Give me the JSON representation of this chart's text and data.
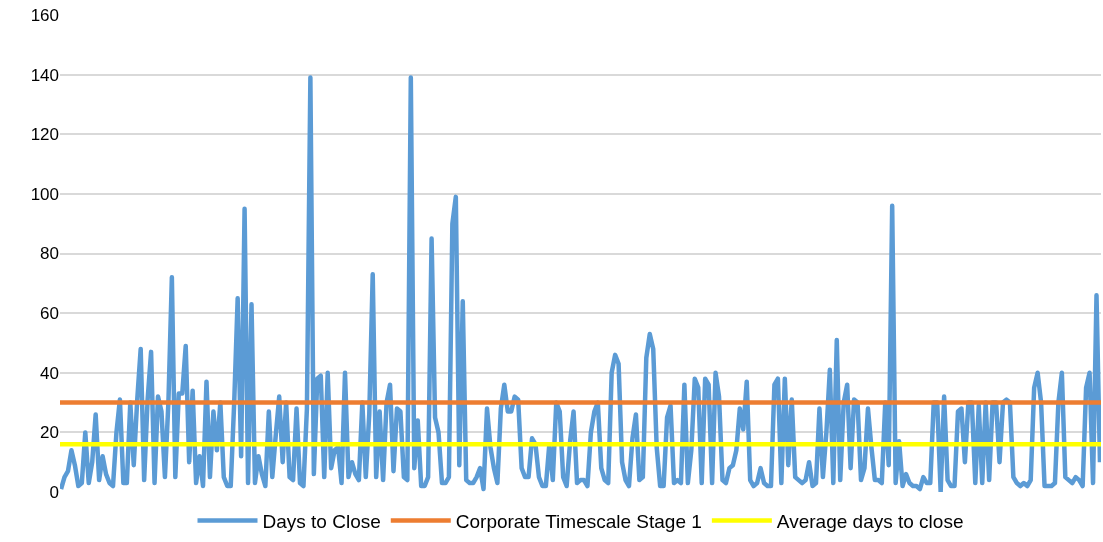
{
  "chart_data": {
    "type": "line",
    "categories": [
      null,
      null,
      null,
      null,
      null,
      null,
      null,
      null,
      null,
      null,
      null,
      null,
      null,
      null,
      null,
      null,
      null,
      null,
      null,
      null,
      null,
      null,
      null,
      null,
      null,
      null,
      null,
      null,
      null,
      null,
      null,
      null,
      null,
      null,
      null,
      null,
      null,
      null,
      null,
      null,
      null,
      null,
      null,
      null,
      null,
      null,
      null,
      null,
      null,
      null,
      null,
      null,
      null,
      null,
      null,
      null,
      null,
      null,
      null,
      null,
      null,
      null,
      null,
      null,
      null,
      null,
      null,
      null,
      null,
      null,
      null,
      null,
      null,
      null,
      null,
      null,
      null,
      null,
      null,
      null,
      null,
      null,
      null,
      null,
      null,
      null,
      null,
      null,
      null,
      null,
      null,
      null,
      null,
      null,
      null,
      null,
      null,
      null,
      null,
      null,
      null,
      null,
      null,
      null,
      null,
      null,
      null,
      null,
      null,
      null,
      null,
      null,
      null,
      null,
      null,
      null,
      null,
      null,
      null,
      null,
      null,
      null,
      null,
      null,
      null,
      null,
      null,
      null,
      null,
      null,
      null,
      null,
      null,
      null,
      null,
      null,
      null,
      null,
      null,
      null,
      null,
      null,
      null,
      null,
      null,
      null,
      null,
      null,
      null,
      null,
      null,
      null,
      null,
      null,
      null,
      null,
      null,
      null,
      null,
      null,
      null,
      null,
      null,
      null,
      null,
      null,
      null,
      null,
      null,
      null,
      null,
      null,
      null,
      null,
      null,
      null,
      null,
      null,
      null,
      null,
      null,
      null,
      null,
      null,
      null,
      null,
      null,
      null,
      null,
      null,
      null,
      null,
      null,
      null,
      null,
      null,
      null,
      null,
      null,
      null,
      null,
      null,
      null,
      null,
      null,
      null,
      null,
      null,
      null,
      null,
      null,
      null,
      null,
      null,
      null,
      null,
      null,
      null,
      null,
      null,
      null,
      null,
      null,
      null,
      null,
      null,
      null,
      null,
      null,
      null,
      null,
      null,
      null,
      null,
      null,
      null,
      null,
      null,
      null,
      null,
      null,
      null,
      null,
      null,
      null,
      null,
      null,
      null,
      null,
      null,
      null,
      null,
      null,
      null,
      null,
      null,
      null,
      null,
      null,
      null,
      null,
      null,
      null,
      null,
      null,
      null,
      null,
      null,
      null,
      null,
      null,
      null,
      null,
      null,
      null,
      null,
      null,
      null,
      null,
      null,
      null,
      null,
      null,
      null,
      null,
      null,
      null,
      null,
      null,
      null,
      null,
      null,
      null,
      null,
      null,
      null,
      null,
      null,
      null,
      null,
      null
    ],
    "series": [
      {
        "name": "Days to Close",
        "color": "#5b9bd5",
        "values": [
          1,
          5,
          7,
          14,
          9,
          2,
          3,
          20,
          3,
          10,
          26,
          4,
          12,
          6,
          3,
          2,
          20,
          31,
          3,
          3,
          30,
          9,
          31,
          48,
          4,
          31,
          47,
          3,
          32,
          27,
          5,
          30,
          72,
          5,
          33,
          33,
          49,
          10,
          34,
          3,
          12,
          2,
          37,
          5,
          27,
          14,
          30,
          5,
          2,
          2,
          30,
          65,
          12,
          95,
          3,
          63,
          3,
          12,
          6,
          2,
          27,
          5,
          19,
          32,
          10,
          30,
          5,
          4,
          28,
          3,
          2,
          28,
          139,
          6,
          38,
          39,
          5,
          40,
          8,
          14,
          15,
          3,
          40,
          5,
          10,
          6,
          4,
          30,
          5,
          26,
          73,
          5,
          27,
          4,
          30,
          36,
          7,
          28,
          27,
          5,
          4,
          139,
          8,
          24,
          2,
          2,
          5,
          85,
          25,
          20,
          3,
          3,
          5,
          90,
          99,
          9,
          64,
          4,
          3,
          3,
          5,
          8,
          1,
          28,
          15,
          8,
          3,
          28,
          36,
          27,
          27,
          32,
          31,
          8,
          5,
          5,
          18,
          16,
          5,
          2,
          2,
          16,
          4,
          30,
          27,
          5,
          2,
          17,
          27,
          3,
          4,
          4,
          2,
          20,
          27,
          30,
          8,
          4,
          3,
          40,
          46,
          43,
          10,
          4,
          2,
          18,
          26,
          4,
          5,
          45,
          53,
          48,
          15,
          2,
          2,
          25,
          29,
          3,
          4,
          3,
          36,
          3,
          14,
          38,
          35,
          3,
          38,
          36,
          3,
          40,
          32,
          4,
          3,
          8,
          9,
          14,
          28,
          21,
          37,
          4,
          2,
          3,
          8,
          3,
          2,
          2,
          36,
          38,
          3,
          38,
          9,
          31,
          5,
          4,
          3,
          4,
          10,
          2,
          3,
          28,
          5,
          20,
          41,
          3,
          51,
          4,
          30,
          36,
          8,
          31,
          30,
          4,
          8,
          28,
          15,
          4,
          4,
          3,
          30,
          9,
          96,
          3,
          17,
          2,
          6,
          3,
          2,
          2,
          1,
          5,
          3,
          3,
          30,
          30,
          0,
          32,
          4,
          2,
          2,
          27,
          28,
          10,
          30,
          30,
          3,
          29,
          3,
          30,
          4,
          30,
          30,
          10,
          30,
          31,
          30,
          5,
          3,
          2,
          3,
          2,
          4,
          35,
          40,
          30,
          2,
          2,
          2,
          3,
          30,
          40,
          5,
          4,
          3,
          5,
          4,
          2,
          35,
          40,
          3,
          66,
          10
        ]
      }
    ],
    "ref_lines": [
      {
        "axis": "y",
        "value": 30,
        "label": "Corporate Timescale Stage 1",
        "color": "#ed7d31"
      },
      {
        "axis": "y",
        "value": 16,
        "label": "Average days to close",
        "color": "#ffff00"
      }
    ],
    "ylim": [
      0,
      160
    ],
    "yticks": [
      0,
      20,
      40,
      60,
      80,
      100,
      120,
      140,
      160
    ],
    "grid": "y",
    "legend": "bottom",
    "marker": "none",
    "line_style": "solid"
  }
}
